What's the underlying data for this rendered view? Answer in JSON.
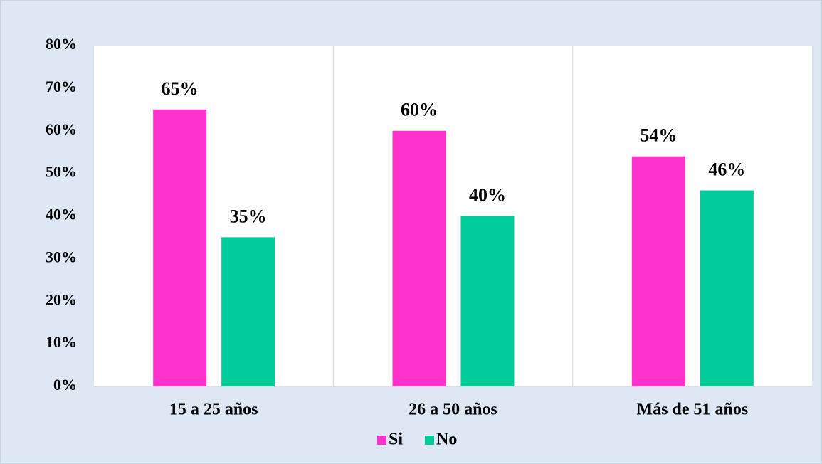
{
  "chart_data": {
    "type": "bar",
    "categories": [
      "15 a 25 años",
      "26 a 50 años",
      "Más de 51 años"
    ],
    "series": [
      {
        "name": "Si",
        "color": "#ff33cc",
        "values": [
          65,
          60,
          54
        ],
        "value_labels": [
          "65%",
          "60%",
          "54%"
        ]
      },
      {
        "name": "No",
        "color": "#00cc99",
        "values": [
          35,
          40,
          46
        ],
        "value_labels": [
          "35%",
          "40%",
          "46%"
        ]
      }
    ],
    "ylim": [
      0,
      80
    ],
    "yticks": [
      {
        "value": 0,
        "label": "0%"
      },
      {
        "value": 10,
        "label": "10%"
      },
      {
        "value": 20,
        "label": "20%"
      },
      {
        "value": 30,
        "label": "30%"
      },
      {
        "value": 40,
        "label": "40%"
      },
      {
        "value": 50,
        "label": "50%"
      },
      {
        "value": 60,
        "label": "60%"
      },
      {
        "value": 70,
        "label": "70%"
      },
      {
        "value": 80,
        "label": "80%"
      }
    ],
    "grid": false,
    "legend": "bottom"
  }
}
